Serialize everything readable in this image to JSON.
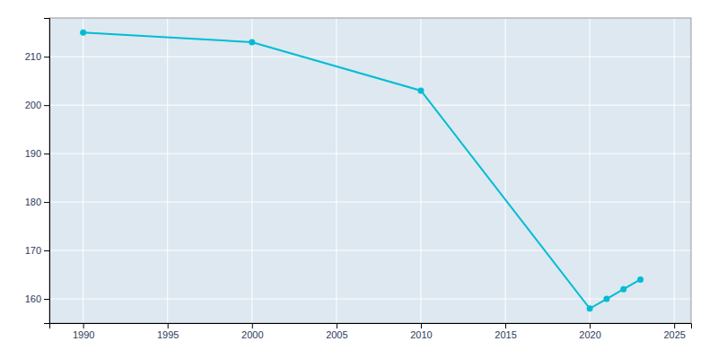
{
  "chart_data": {
    "type": "line",
    "x": [
      1990,
      2000,
      2010,
      2020,
      2021,
      2022,
      2023
    ],
    "values": [
      215,
      213,
      203,
      158,
      160,
      162,
      164
    ],
    "color": "#00BCD4",
    "marker": "circle",
    "xlim": [
      1988,
      2026
    ],
    "ylim": [
      155,
      218
    ],
    "xticks": [
      1990,
      1995,
      2000,
      2005,
      2010,
      2015,
      2020,
      2025
    ],
    "yticks": [
      160,
      170,
      180,
      190,
      200,
      210
    ],
    "grid": true
  }
}
